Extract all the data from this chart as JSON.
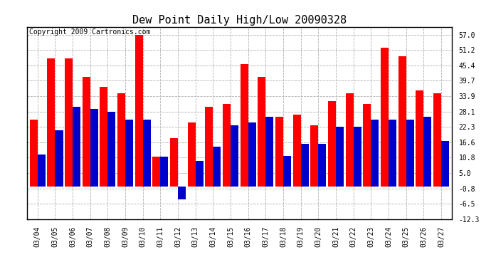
{
  "title": "Dew Point Daily High/Low 20090328",
  "copyright": "Copyright 2009 Cartronics.com",
  "dates": [
    "03/04",
    "03/05",
    "03/06",
    "03/07",
    "03/08",
    "03/09",
    "03/10",
    "03/11",
    "03/12",
    "03/13",
    "03/14",
    "03/15",
    "03/16",
    "03/17",
    "03/18",
    "03/19",
    "03/20",
    "03/21",
    "03/22",
    "03/23",
    "03/24",
    "03/25",
    "03/26",
    "03/27"
  ],
  "highs": [
    25.0,
    48.0,
    48.0,
    41.0,
    37.5,
    35.0,
    57.0,
    11.0,
    18.0,
    24.0,
    30.0,
    31.0,
    46.0,
    41.0,
    26.0,
    27.0,
    23.0,
    32.0,
    35.0,
    31.0,
    52.0,
    49.0,
    36.0,
    35.0
  ],
  "lows": [
    12.0,
    21.0,
    30.0,
    29.0,
    28.0,
    25.0,
    25.0,
    11.0,
    -5.0,
    9.5,
    15.0,
    23.0,
    24.0,
    26.0,
    11.5,
    16.0,
    16.0,
    22.5,
    22.5,
    25.0,
    25.0,
    25.0,
    26.0,
    17.0
  ],
  "high_color": "#ff0000",
  "low_color": "#0000cc",
  "bg_color": "#ffffff",
  "plot_bg_color": "#ffffff",
  "grid_color": "#b0b0b0",
  "yticks": [
    57.0,
    51.2,
    45.4,
    39.7,
    33.9,
    28.1,
    22.3,
    16.6,
    10.8,
    5.0,
    -0.8,
    -6.5,
    -12.3
  ],
  "ymin": -12.3,
  "ymax": 60.0,
  "title_fontsize": 11,
  "tick_fontsize": 7,
  "copyright_fontsize": 7
}
